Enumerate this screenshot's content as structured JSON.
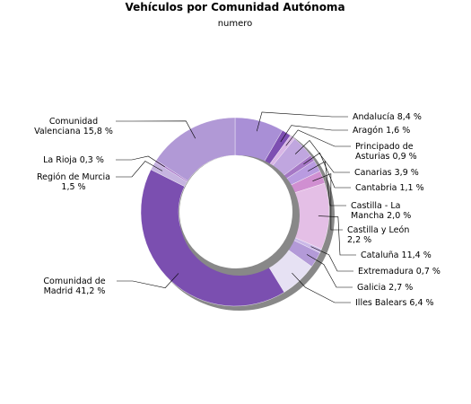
{
  "chart_data": {
    "type": "pie",
    "donut": true,
    "title": "Vehículos por Comunidad Autónoma",
    "subtitle": "numero",
    "unit": "%",
    "slices": [
      {
        "label": "Andalucía 8,4 %",
        "value": 8.4,
        "color": "#a98fd6"
      },
      {
        "label": "Aragón 1,6 %",
        "value": 1.6,
        "color": "#7d4fb2"
      },
      {
        "label": "Principado de Asturias 0,9 %",
        "value": 0.9,
        "color": "#d9b6e6"
      },
      {
        "label": "Canarias 3,9 %",
        "value": 3.9,
        "color": "#c0a6df"
      },
      {
        "label": "Cantabria 1,1 %",
        "value": 1.1,
        "color": "#a678c6"
      },
      {
        "label": "Castilla - La Mancha 2,0 %",
        "value": 2.0,
        "color": "#b99be0"
      },
      {
        "label": "Castilla y León 2,2 %",
        "value": 2.2,
        "color": "#d08fd1"
      },
      {
        "label": "Cataluña 11,4 %",
        "value": 11.4,
        "color": "#e4bfe6"
      },
      {
        "label": "Extremadura 0,7 %",
        "value": 0.7,
        "color": "#cbb9e8"
      },
      {
        "label": "Galicia 2,7 %",
        "value": 2.7,
        "color": "#b39ad8"
      },
      {
        "label": "Illes Balears 6,4 %",
        "value": 6.4,
        "color": "#e6e1f3"
      },
      {
        "label": "Comunidad de Madrid 41,2 %",
        "value": 41.2,
        "color": "#7b4fb0"
      },
      {
        "label": "Región de Murcia 1,5 %",
        "value": 1.5,
        "color": "#c6b4e0"
      },
      {
        "label": "La Rioja 0,3 %",
        "value": 0.3,
        "color": "#a26ec6"
      },
      {
        "label": "Comunidad Valenciana 15,8 %",
        "value": 15.8,
        "color": "#b199d6"
      }
    ]
  }
}
